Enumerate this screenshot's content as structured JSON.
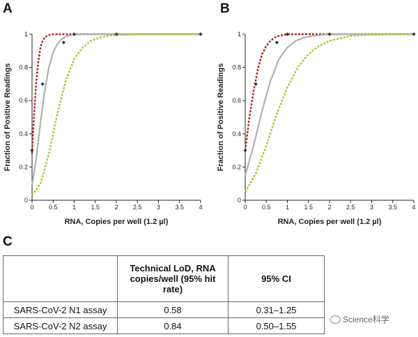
{
  "panel_a_letter": "A",
  "panel_b_letter": "B",
  "panel_c_letter": "C",
  "chart_data": [
    {
      "type": "line",
      "panel": "A",
      "xlabel": "RNA, Copies per well (1.2 µl)",
      "ylabel": "Fraction of Positive Readings",
      "xlim": [
        0,
        4
      ],
      "ylim": [
        0,
        1
      ],
      "xticks": [
        "0",
        "0.5",
        "1",
        "1.5",
        "2",
        "2.5",
        "3",
        "3.5",
        "4"
      ],
      "yticks": [
        "0",
        "0.2",
        "0.4",
        "0.6",
        "0.8",
        "1"
      ],
      "grid": false,
      "points": [
        {
          "x": 0,
          "y": 0.3
        },
        {
          "x": 0.25,
          "y": 0.7
        },
        {
          "x": 0.75,
          "y": 0.95
        },
        {
          "x": 1,
          "y": 1
        },
        {
          "x": 2,
          "y": 1
        },
        {
          "x": 4,
          "y": 1
        }
      ],
      "series": [
        {
          "style": "dotted",
          "color": "#b22222",
          "x": [
            0,
            0.05,
            0.1,
            0.15,
            0.2,
            0.25,
            0.3,
            0.35,
            0.4,
            0.5,
            0.6,
            0.8,
            1,
            4
          ],
          "y": [
            0.28,
            0.52,
            0.71,
            0.84,
            0.92,
            0.96,
            0.98,
            0.99,
            0.995,
            1,
            1,
            1,
            1,
            1
          ]
        },
        {
          "style": "solid",
          "color": "#b0b0b0",
          "x": [
            0,
            0.1,
            0.2,
            0.3,
            0.4,
            0.5,
            0.6,
            0.7,
            0.8,
            0.9,
            1,
            1.2,
            1.5,
            4
          ],
          "y": [
            0.09,
            0.25,
            0.47,
            0.66,
            0.8,
            0.89,
            0.94,
            0.97,
            0.985,
            0.993,
            0.997,
            1,
            1,
            1
          ]
        },
        {
          "style": "dotted",
          "color": "#9acd32",
          "x": [
            0,
            0.2,
            0.4,
            0.6,
            0.8,
            1,
            1.2,
            1.4,
            1.6,
            1.8,
            2,
            2.5,
            4
          ],
          "y": [
            0.03,
            0.1,
            0.28,
            0.52,
            0.72,
            0.85,
            0.92,
            0.96,
            0.98,
            0.99,
            0.995,
            1,
            1
          ]
        }
      ]
    },
    {
      "type": "line",
      "panel": "B",
      "xlabel": "RNA, Copies per well (1.2 µl)",
      "ylabel": "Fraction of Positive Readings",
      "xlim": [
        0,
        4
      ],
      "ylim": [
        0,
        1
      ],
      "xticks": [
        "0",
        "0.5",
        "1",
        "1.5",
        "2",
        "2.5",
        "3",
        "3.5",
        "4"
      ],
      "yticks": [
        "0",
        "0.2",
        "0.4",
        "0.6",
        "0.8",
        "1"
      ],
      "grid": false,
      "points": [
        {
          "x": 0,
          "y": 0.3
        },
        {
          "x": 0.25,
          "y": 0.7
        },
        {
          "x": 0.75,
          "y": 0.95
        },
        {
          "x": 1,
          "y": 1
        },
        {
          "x": 2,
          "y": 1
        },
        {
          "x": 4,
          "y": 1
        }
      ],
      "series": [
        {
          "style": "dotted",
          "color": "#b22222",
          "x": [
            0,
            0.1,
            0.2,
            0.3,
            0.4,
            0.5,
            0.6,
            0.7,
            0.8,
            0.9,
            1,
            1.2,
            4
          ],
          "y": [
            0.3,
            0.5,
            0.66,
            0.79,
            0.88,
            0.93,
            0.96,
            0.98,
            0.99,
            0.995,
            1,
            1,
            1
          ]
        },
        {
          "style": "solid",
          "color": "#b0b0b0",
          "x": [
            0,
            0.2,
            0.4,
            0.6,
            0.8,
            1,
            1.2,
            1.4,
            1.6,
            1.8,
            2,
            4
          ],
          "y": [
            0.15,
            0.33,
            0.54,
            0.72,
            0.85,
            0.92,
            0.96,
            0.98,
            0.99,
            0.995,
            1,
            1
          ]
        },
        {
          "style": "dotted",
          "color": "#9acd32",
          "x": [
            0,
            0.25,
            0.5,
            0.75,
            1,
            1.25,
            1.5,
            1.75,
            2,
            2.5,
            3,
            4
          ],
          "y": [
            0.05,
            0.16,
            0.33,
            0.52,
            0.68,
            0.8,
            0.88,
            0.93,
            0.96,
            0.99,
            0.997,
            1
          ]
        }
      ]
    }
  ],
  "table": {
    "header": [
      "",
      "Technical LoD, RNA copies/well (95% hit rate)",
      "95% CI"
    ],
    "rows": [
      {
        "name": "SARS-CoV-2 N1 assay",
        "lod": "0.58",
        "ci": "0.31–1.25"
      },
      {
        "name": "SARS-CoV-2 N2 assay",
        "lod": "0.84",
        "ci": "0.50–1.55"
      }
    ]
  },
  "watermark": "Science科学"
}
